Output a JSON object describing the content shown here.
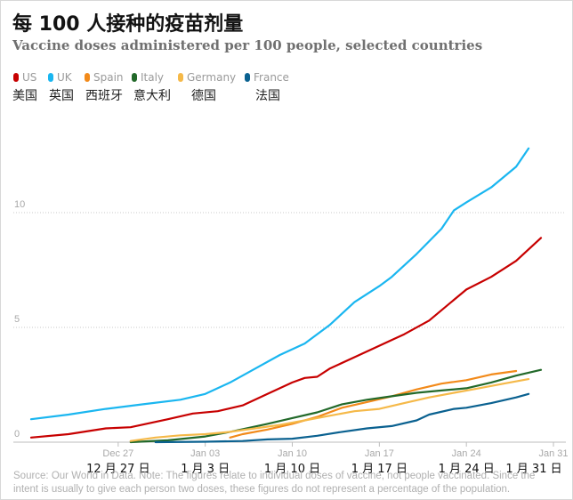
{
  "title": "每 100 人接种的疫苗剂量",
  "subtitle": "Vaccine doses administered per 100 people, selected countries",
  "legend": [
    {
      "en": "US",
      "cn": "美国",
      "color": "#c70000"
    },
    {
      "en": "UK",
      "cn": "英国",
      "color": "#1ab6f0"
    },
    {
      "en": "Spain",
      "cn": "西班牙",
      "color": "#f28a1a"
    },
    {
      "en": "Italy",
      "cn": "意大利",
      "color": "#22692a"
    },
    {
      "en": "Germany",
      "cn": "德国",
      "color": "#f5b949"
    },
    {
      "en": "France",
      "cn": "法国",
      "color": "#0a6190"
    }
  ],
  "x_cn_labels": [
    "12 月 27 日",
    "1 月 3 日",
    "1 月 10 日",
    "1 月 17 日",
    "1 月 24 日",
    "1 月 31 日"
  ],
  "source": "Source: Our World in Data. Note: The figures relate to individual doses of vaccine, not people vaccinated. Since the intent is usually to give each person two doses, these figures do not represent a percentage of the population.",
  "chart_data": {
    "type": "line",
    "title": "每 100 人接种的疫苗剂量",
    "subtitle": "Vaccine doses administered per 100 people, selected countries",
    "x_unit": "days since Dec 20",
    "x_ticks": [
      {
        "day": 7,
        "label": "Dec 27"
      },
      {
        "day": 14,
        "label": "Jan 03"
      },
      {
        "day": 21,
        "label": "Jan 10"
      },
      {
        "day": 28,
        "label": "Jan 17"
      },
      {
        "day": 35,
        "label": "Jan 24"
      },
      {
        "day": 42,
        "label": "Jan 31"
      }
    ],
    "xlim": [
      0,
      43
    ],
    "ylim": [
      0,
      12
    ],
    "y_ticks": [
      0,
      5,
      10
    ],
    "series": [
      {
        "name": "US",
        "color": "#c70000",
        "points": [
          [
            0,
            0.2
          ],
          [
            3,
            0.35
          ],
          [
            6,
            0.6
          ],
          [
            8,
            0.65
          ],
          [
            11,
            1.0
          ],
          [
            13,
            1.25
          ],
          [
            15,
            1.35
          ],
          [
            17,
            1.6
          ],
          [
            19,
            2.1
          ],
          [
            21,
            2.6
          ],
          [
            22,
            2.8
          ],
          [
            23,
            2.85
          ],
          [
            24,
            3.2
          ],
          [
            26,
            3.7
          ],
          [
            28,
            4.2
          ],
          [
            30,
            4.7
          ],
          [
            32,
            5.3
          ],
          [
            34,
            6.2
          ],
          [
            35,
            6.65
          ],
          [
            37,
            7.2
          ],
          [
            39,
            7.9
          ],
          [
            41,
            8.9
          ]
        ]
      },
      {
        "name": "UK",
        "color": "#1ab6f0",
        "points": [
          [
            0,
            1.0
          ],
          [
            3,
            1.2
          ],
          [
            6,
            1.45
          ],
          [
            9,
            1.65
          ],
          [
            12,
            1.85
          ],
          [
            14,
            2.1
          ],
          [
            16,
            2.6
          ],
          [
            18,
            3.2
          ],
          [
            20,
            3.8
          ],
          [
            22,
            4.3
          ],
          [
            24,
            5.1
          ],
          [
            26,
            6.1
          ],
          [
            28,
            6.8
          ],
          [
            29,
            7.2
          ],
          [
            31,
            8.2
          ],
          [
            33,
            9.3
          ],
          [
            34,
            10.1
          ],
          [
            35,
            10.45
          ],
          [
            37,
            11.1
          ],
          [
            39,
            12.0
          ],
          [
            40,
            12.8
          ]
        ]
      },
      {
        "name": "Spain",
        "color": "#f28a1a",
        "points": [
          [
            16,
            0.2
          ],
          [
            17,
            0.35
          ],
          [
            19,
            0.55
          ],
          [
            21,
            0.8
          ],
          [
            23,
            1.1
          ],
          [
            25,
            1.5
          ],
          [
            27,
            1.75
          ],
          [
            29,
            2.0
          ],
          [
            31,
            2.3
          ],
          [
            33,
            2.55
          ],
          [
            35,
            2.7
          ],
          [
            37,
            2.95
          ],
          [
            39,
            3.1
          ]
        ]
      },
      {
        "name": "Italy",
        "color": "#22692a",
        "points": [
          [
            8,
            0.0
          ],
          [
            11,
            0.08
          ],
          [
            14,
            0.25
          ],
          [
            16,
            0.45
          ],
          [
            19,
            0.8
          ],
          [
            21,
            1.05
          ],
          [
            23,
            1.3
          ],
          [
            25,
            1.65
          ],
          [
            27,
            1.85
          ],
          [
            29,
            2.0
          ],
          [
            31,
            2.15
          ],
          [
            33,
            2.25
          ],
          [
            35,
            2.35
          ],
          [
            37,
            2.6
          ],
          [
            39,
            2.9
          ],
          [
            41,
            3.15
          ]
        ]
      },
      {
        "name": "Germany",
        "color": "#f5b949",
        "points": [
          [
            8,
            0.05
          ],
          [
            10,
            0.2
          ],
          [
            12,
            0.3
          ],
          [
            14,
            0.35
          ],
          [
            16,
            0.45
          ],
          [
            18,
            0.6
          ],
          [
            20,
            0.75
          ],
          [
            22,
            0.95
          ],
          [
            24,
            1.15
          ],
          [
            26,
            1.35
          ],
          [
            28,
            1.45
          ],
          [
            30,
            1.7
          ],
          [
            32,
            1.95
          ],
          [
            34,
            2.15
          ],
          [
            36,
            2.35
          ],
          [
            38,
            2.55
          ],
          [
            40,
            2.75
          ]
        ]
      },
      {
        "name": "France",
        "color": "#0a6190",
        "points": [
          [
            10,
            0.0
          ],
          [
            14,
            0.02
          ],
          [
            17,
            0.05
          ],
          [
            19,
            0.12
          ],
          [
            21,
            0.15
          ],
          [
            23,
            0.28
          ],
          [
            25,
            0.45
          ],
          [
            27,
            0.6
          ],
          [
            29,
            0.7
          ],
          [
            31,
            0.95
          ],
          [
            32,
            1.2
          ],
          [
            34,
            1.45
          ],
          [
            35,
            1.5
          ],
          [
            37,
            1.7
          ],
          [
            39,
            1.95
          ],
          [
            40,
            2.1
          ]
        ]
      }
    ]
  }
}
